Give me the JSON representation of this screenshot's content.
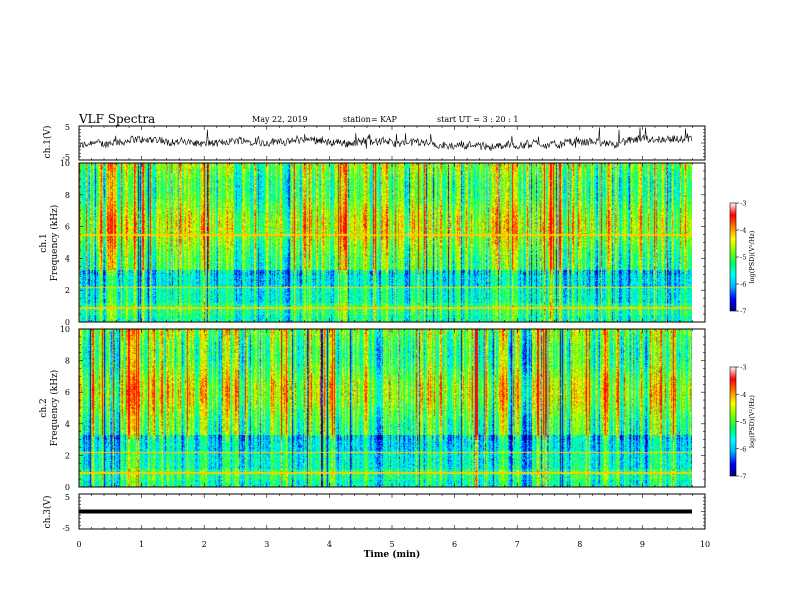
{
  "header": {
    "title": "VLF Spectra",
    "date": "May 22, 2019",
    "station": "station= KAP",
    "start_ut": "start  UT =   3  : 20 : 1"
  },
  "chart_data": [
    {
      "type": "line",
      "ylabel": "ch.1(V)",
      "ylim": [
        -5,
        5
      ],
      "yticks": [
        "5",
        "-5"
      ],
      "description_values": "noisy waveform mostly between -3 and 2 V, with spikes toward +5 V and -4 V",
      "xlim": [
        0,
        10
      ]
    },
    {
      "type": "heatmap",
      "ylabel_line1": "ch.1",
      "ylabel_line2": "Frequency (kHz)",
      "ylim": [
        0,
        10
      ],
      "yticks": [
        "0",
        "2",
        "4",
        "6",
        "8",
        "10"
      ],
      "xlim": [
        0,
        9.8
      ],
      "colorbar": {
        "label": "log(PSD)(V²/Hz)",
        "ticks": [
          "-3",
          "-4",
          "-5",
          "-6",
          "-7"
        ],
        "range": [
          -7,
          -3
        ]
      }
    },
    {
      "type": "heatmap",
      "ylabel_line1": "ch.2",
      "ylabel_line2": "Frequency (kHz)",
      "ylim": [
        0,
        10
      ],
      "yticks": [
        "0",
        "2",
        "4",
        "6",
        "8",
        "10"
      ],
      "xlim": [
        0,
        9.8
      ],
      "colorbar": {
        "label": "log(PSD)(V²/Hz)",
        "ticks": [
          "-3",
          "-4",
          "-5",
          "-6",
          "-7"
        ],
        "range": [
          -7,
          -3
        ]
      }
    },
    {
      "type": "line",
      "ylabel": "ch.3(V)",
      "ylim": [
        -5,
        5
      ],
      "yticks": [
        "5",
        "-5"
      ],
      "constant_value": 0,
      "xlim": [
        0,
        10
      ]
    }
  ],
  "xaxis": {
    "label": "Time (min)",
    "ticks": [
      "0",
      "1",
      "2",
      "3",
      "4",
      "5",
      "6",
      "7",
      "8",
      "9",
      "10"
    ],
    "range": [
      0,
      10
    ]
  },
  "colors": {
    "scale": [
      "#000080",
      "#0000ff",
      "#00b0ff",
      "#00ffff",
      "#00ff60",
      "#80ff00",
      "#ffff00",
      "#ff8000",
      "#ff0000",
      "#ffffff"
    ]
  }
}
